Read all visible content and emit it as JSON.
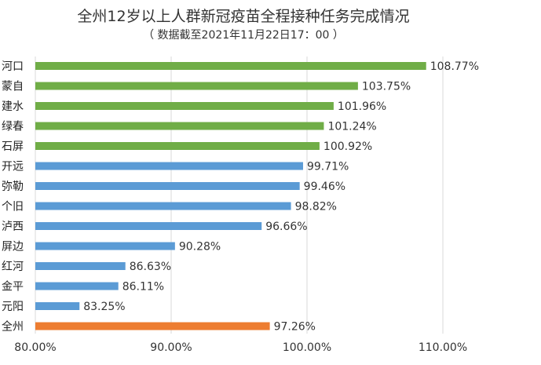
{
  "chart_data": {
    "type": "bar",
    "orientation": "horizontal",
    "title": "全州12岁以上人群新冠疫苗全程接种任务完成情况",
    "subtitle": "（ 数据截至2021年11月22日17：00 ）",
    "categories": [
      "河口",
      "蒙自",
      "建水",
      "绿春",
      "石屏",
      "开远",
      "弥勒",
      "个旧",
      "泸西",
      "屏边",
      "红河",
      "金平",
      "元阳",
      "全州"
    ],
    "values": [
      108.77,
      103.75,
      101.96,
      101.24,
      100.92,
      99.71,
      99.46,
      98.82,
      96.66,
      90.28,
      86.63,
      86.11,
      83.25,
      97.26
    ],
    "value_labels": [
      "108.77%",
      "103.75%",
      "101.96%",
      "101.24%",
      "100.92%",
      "99.71%",
      "99.46%",
      "98.82%",
      "96.66%",
      "90.28%",
      "86.63%",
      "86.11%",
      "83.25%",
      "97.26%"
    ],
    "bar_colors": [
      "#70ad47",
      "#70ad47",
      "#70ad47",
      "#70ad47",
      "#70ad47",
      "#5b9bd5",
      "#5b9bd5",
      "#5b9bd5",
      "#5b9bd5",
      "#5b9bd5",
      "#5b9bd5",
      "#5b9bd5",
      "#5b9bd5",
      "#ed7d31"
    ],
    "xlim": [
      80,
      110
    ],
    "xticks": [
      80,
      90,
      100,
      110
    ],
    "xtick_labels": [
      "80.00%",
      "90.00%",
      "100.00%",
      "110.00%"
    ],
    "grid": "vertical",
    "legend": "none"
  }
}
